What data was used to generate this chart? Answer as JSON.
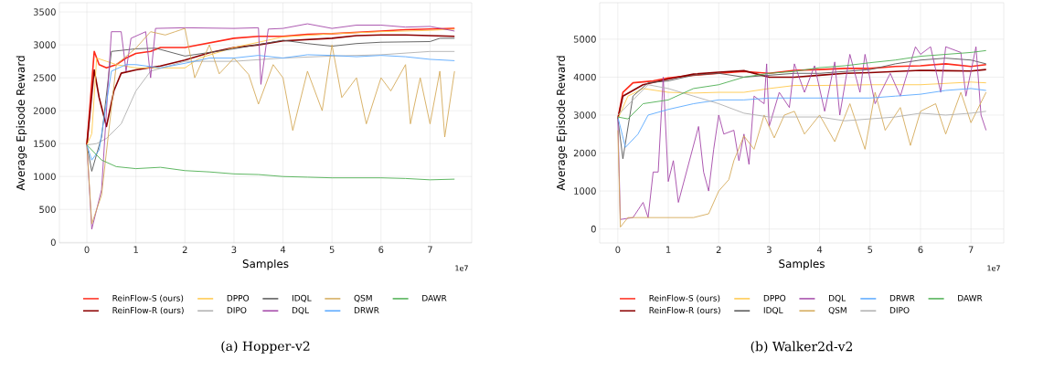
{
  "chart_data": [
    {
      "type": "line",
      "title": "(a) Hopper-v2",
      "xlabel": "Samples",
      "ylabel": "Average Episode Reward",
      "annotations": [
        "1e7"
      ],
      "xlim": [
        -0.56,
        7.85
      ],
      "ylim": [
        -10,
        3640
      ],
      "xticks": [
        0,
        1,
        2,
        3,
        4,
        5,
        6,
        7
      ],
      "yticks": [
        0,
        500,
        1000,
        1500,
        2000,
        2500,
        3000,
        3500
      ],
      "grid": true,
      "legend": "bottom",
      "marker": "none",
      "line_style": "solid",
      "series": [
        {
          "name": "ReinFlow-S (ours)",
          "color": "#ff2a1a",
          "x": [
            0,
            0.15,
            0.25,
            0.4,
            0.6,
            0.8,
            1,
            1.3,
            1.5,
            2,
            2.5,
            3,
            3.5,
            4,
            4.5,
            5,
            5.5,
            6,
            6.5,
            7,
            7.5
          ],
          "values": [
            1480,
            2900,
            2700,
            2650,
            2700,
            2800,
            2870,
            2900,
            2960,
            2960,
            3030,
            3100,
            3130,
            3130,
            3160,
            3170,
            3190,
            3210,
            3230,
            3240,
            3250
          ]
        },
        {
          "name": "ReinFlow-R (ours)",
          "color": "#8b0000",
          "x": [
            0,
            0.15,
            0.25,
            0.4,
            0.55,
            0.7,
            1,
            1.5,
            2,
            2.5,
            3,
            3.5,
            4,
            4.5,
            5,
            5.5,
            6,
            6.5,
            7,
            7.5
          ],
          "values": [
            1480,
            2620,
            2200,
            1760,
            2300,
            2570,
            2620,
            2680,
            2770,
            2880,
            2960,
            3000,
            3060,
            3080,
            3100,
            3140,
            3150,
            3150,
            3140,
            3130
          ]
        },
        {
          "name": "DPPO",
          "color": "#ffc84a",
          "x": [
            0,
            0.1,
            0.2,
            0.4,
            0.6,
            1,
            1.5,
            2,
            2.3,
            3,
            4,
            5,
            6,
            7,
            7.5
          ],
          "values": [
            1480,
            1650,
            2800,
            2750,
            2700,
            2650,
            2650,
            2650,
            2800,
            2960,
            3120,
            3170,
            3200,
            3220,
            3240
          ]
        },
        {
          "name": "DIPO",
          "color": "#b0b0b0",
          "x": [
            0,
            0.2,
            0.4,
            0.7,
            1,
            1.3,
            2,
            3,
            4,
            5,
            6,
            7,
            7.5
          ],
          "values": [
            1480,
            1500,
            1580,
            1800,
            2300,
            2600,
            2750,
            2750,
            2800,
            2830,
            2850,
            2900,
            2900
          ]
        },
        {
          "name": "IDQL",
          "color": "#555555",
          "x": [
            0,
            0.1,
            0.3,
            0.5,
            1,
            1.4,
            2,
            3,
            4,
            4.5,
            5,
            5.5,
            6,
            7,
            7.2,
            7.5
          ],
          "values": [
            1480,
            1080,
            1600,
            2900,
            2940,
            2950,
            2830,
            2940,
            3070,
            3020,
            2980,
            3020,
            3040,
            3050,
            3100,
            3100
          ]
        },
        {
          "name": "DQL",
          "color": "#a347a8",
          "x": [
            0,
            0.1,
            0.3,
            0.5,
            0.7,
            0.8,
            0.9,
            1.2,
            1.3,
            1.4,
            2,
            3,
            3.5,
            3.55,
            3.7,
            4,
            4.5,
            5,
            5.5,
            6,
            6.5,
            7,
            7.5
          ],
          "values": [
            1480,
            200,
            800,
            3200,
            3200,
            2600,
            3100,
            3200,
            2500,
            3250,
            3260,
            3250,
            3260,
            2400,
            3240,
            3250,
            3320,
            3250,
            3300,
            3300,
            3270,
            3280,
            3210
          ]
        },
        {
          "name": "QSM",
          "color": "#d4aa5a",
          "x": [
            0,
            0.1,
            0.3,
            0.6,
            1,
            1.3,
            1.6,
            1.8,
            2,
            2.2,
            2.5,
            2.7,
            3,
            3.3,
            3.5,
            3.8,
            4,
            4.2,
            4.5,
            4.8,
            5,
            5.2,
            5.5,
            5.7,
            6,
            6.2,
            6.5,
            6.6,
            6.8,
            7,
            7.2,
            7.3,
            7.5
          ],
          "values": [
            1480,
            280,
            720,
            2700,
            2950,
            3200,
            3150,
            3200,
            3250,
            2500,
            3000,
            2560,
            2800,
            2550,
            2100,
            2700,
            2500,
            1700,
            2600,
            2000,
            3000,
            2200,
            2500,
            1800,
            2500,
            2300,
            2700,
            1800,
            2500,
            1800,
            2600,
            1600,
            2600
          ]
        },
        {
          "name": "DRWR",
          "color": "#5aa9ff",
          "x": [
            0,
            0.1,
            0.25,
            0.5,
            0.8,
            1,
            1.5,
            2,
            2.5,
            3,
            3.5,
            4,
            4.5,
            5,
            5.5,
            6,
            6.5,
            7,
            7.5
          ],
          "values": [
            1480,
            1250,
            1400,
            2600,
            2700,
            2700,
            2650,
            2720,
            2800,
            2800,
            2840,
            2800,
            2850,
            2840,
            2820,
            2840,
            2820,
            2780,
            2760
          ]
        },
        {
          "name": "DAWR",
          "color": "#4caf50",
          "x": [
            0,
            0.3,
            0.6,
            1,
            1.5,
            2,
            2.5,
            3,
            3.5,
            4,
            4.5,
            5,
            6,
            6.5,
            7,
            7.5
          ],
          "values": [
            1480,
            1250,
            1150,
            1120,
            1140,
            1090,
            1070,
            1040,
            1030,
            1000,
            990,
            980,
            980,
            970,
            950,
            960
          ]
        }
      ]
    },
    {
      "type": "line",
      "title": "(b) Walker2d-v2",
      "xlabel": "Samples",
      "ylabel": "Average Episode Reward",
      "annotations": [
        "1e7"
      ],
      "xlim": [
        -0.36,
        7.65
      ],
      "ylim": [
        -370,
        5960
      ],
      "xticks": [
        0,
        1,
        2,
        3,
        4,
        5,
        6,
        7
      ],
      "yticks": [
        0,
        1000,
        2000,
        3000,
        4000,
        5000
      ],
      "grid": true,
      "legend": "bottom",
      "marker": "none",
      "line_style": "solid",
      "series": [
        {
          "name": "ReinFlow-S (ours)",
          "color": "#ff2a1a",
          "x": [
            0,
            0.1,
            0.3,
            0.7,
            1,
            1.5,
            2,
            2.5,
            3,
            3.5,
            4,
            4.5,
            5,
            5.5,
            6,
            6.5,
            7,
            7.3
          ],
          "values": [
            2900,
            3600,
            3850,
            3900,
            3980,
            4050,
            4100,
            4150,
            4100,
            4180,
            4200,
            4230,
            4230,
            4280,
            4300,
            4350,
            4280,
            4330
          ]
        },
        {
          "name": "ReinFlow-R (ours)",
          "color": "#8b0000",
          "x": [
            0,
            0.1,
            0.5,
            1,
            1.5,
            2,
            2.5,
            3,
            3.5,
            4,
            4.5,
            5,
            5.5,
            6,
            6.5,
            7,
            7.3
          ],
          "values": [
            2900,
            3500,
            3800,
            3950,
            4080,
            4130,
            4170,
            4000,
            4000,
            4050,
            4100,
            4120,
            4150,
            4180,
            4170,
            4160,
            4200
          ]
        },
        {
          "name": "DPPO",
          "color": "#ffc84a",
          "x": [
            0,
            0.2,
            0.5,
            1,
            1.5,
            2,
            2.5,
            3,
            3.5,
            4,
            5,
            6,
            7,
            7.3
          ],
          "values": [
            2900,
            3500,
            3700,
            3600,
            3580,
            3600,
            3600,
            3700,
            3780,
            3780,
            3800,
            3800,
            3870,
            3850
          ]
        },
        {
          "name": "IDQL",
          "color": "#555555",
          "x": [
            0,
            0.1,
            0.3,
            0.6,
            1,
            1.5,
            2,
            2.5,
            3,
            3.5,
            4,
            5,
            5.5,
            6,
            6.5,
            7,
            7.3
          ],
          "values": [
            2900,
            1850,
            3500,
            3850,
            3900,
            4050,
            4100,
            4000,
            4050,
            4100,
            4100,
            4200,
            4350,
            4450,
            4500,
            4450,
            4350
          ]
        },
        {
          "name": "DQL",
          "color": "#a347a8",
          "x": [
            0,
            0.05,
            0.3,
            0.5,
            0.6,
            0.7,
            0.8,
            0.9,
            1,
            1.1,
            1.2,
            1.4,
            1.6,
            1.7,
            1.8,
            1.9,
            2,
            2.1,
            2.3,
            2.4,
            2.5,
            2.6,
            2.7,
            2.9,
            2.95,
            3,
            3.2,
            3.4,
            3.5,
            3.7,
            3.9,
            4.1,
            4.3,
            4.4,
            4.6,
            4.8,
            4.9,
            5.1,
            5.4,
            5.6,
            5.9,
            6,
            6.2,
            6.4,
            6.5,
            6.8,
            6.9,
            7.1,
            7.2,
            7.3
          ],
          "values": [
            2900,
            250,
            300,
            700,
            300,
            1500,
            1500,
            4000,
            1250,
            1800,
            700,
            1700,
            2700,
            1500,
            1000,
            2100,
            3000,
            2500,
            2600,
            1800,
            2500,
            1700,
            3500,
            3300,
            4350,
            2700,
            3600,
            3200,
            4350,
            3600,
            4300,
            3100,
            4400,
            3000,
            4600,
            3600,
            4600,
            3300,
            4100,
            3500,
            4800,
            4600,
            4800,
            3600,
            4800,
            4650,
            3500,
            4800,
            3000,
            2600
          ]
        },
        {
          "name": "QSM",
          "color": "#d4aa5a",
          "x": [
            0,
            0.05,
            0.2,
            0.5,
            1,
            1.5,
            1.8,
            2,
            2.2,
            2.3,
            2.5,
            2.7,
            2.9,
            3.1,
            3.3,
            3.5,
            3.7,
            4,
            4.3,
            4.6,
            4.9,
            5.1,
            5.3,
            5.6,
            5.8,
            6,
            6.3,
            6.5,
            6.8,
            7,
            7.3
          ],
          "values": [
            2600,
            50,
            300,
            300,
            300,
            300,
            400,
            1000,
            1300,
            1800,
            2450,
            2100,
            3000,
            2400,
            3000,
            3100,
            2500,
            3000,
            2300,
            3300,
            2100,
            3600,
            2600,
            3200,
            2200,
            3100,
            3300,
            2500,
            3600,
            2800,
            3600
          ]
        },
        {
          "name": "DRWR",
          "color": "#5aa9ff",
          "x": [
            0,
            0.15,
            0.4,
            0.6,
            1,
            1.5,
            2,
            2.5,
            3,
            3.5,
            4,
            5,
            5.5,
            6,
            6.5,
            7,
            7.3
          ],
          "values": [
            2950,
            2150,
            2500,
            3000,
            3150,
            3300,
            3400,
            3400,
            3450,
            3450,
            3450,
            3450,
            3500,
            3550,
            3650,
            3700,
            3650
          ]
        },
        {
          "name": "DIPO",
          "color": "#b0b0b0",
          "x": [
            0,
            0.3,
            0.6,
            1,
            1.5,
            2,
            2.5,
            3,
            4,
            4.5,
            5,
            5.5,
            6,
            6.5,
            7,
            7.3
          ],
          "values": [
            3000,
            3400,
            3800,
            3700,
            3500,
            3300,
            3050,
            2950,
            2950,
            2850,
            2900,
            2950,
            3050,
            3000,
            3050,
            3100
          ]
        },
        {
          "name": "DAWR",
          "color": "#4caf50",
          "x": [
            0,
            0.2,
            0.5,
            1,
            1.5,
            2,
            2.5,
            3,
            3.5,
            4,
            4.5,
            5,
            5.5,
            6,
            6.5,
            7,
            7.3
          ],
          "values": [
            2950,
            2900,
            3300,
            3400,
            3700,
            3800,
            4000,
            4100,
            4150,
            4250,
            4300,
            4380,
            4450,
            4550,
            4600,
            4650,
            4700
          ]
        }
      ]
    }
  ]
}
